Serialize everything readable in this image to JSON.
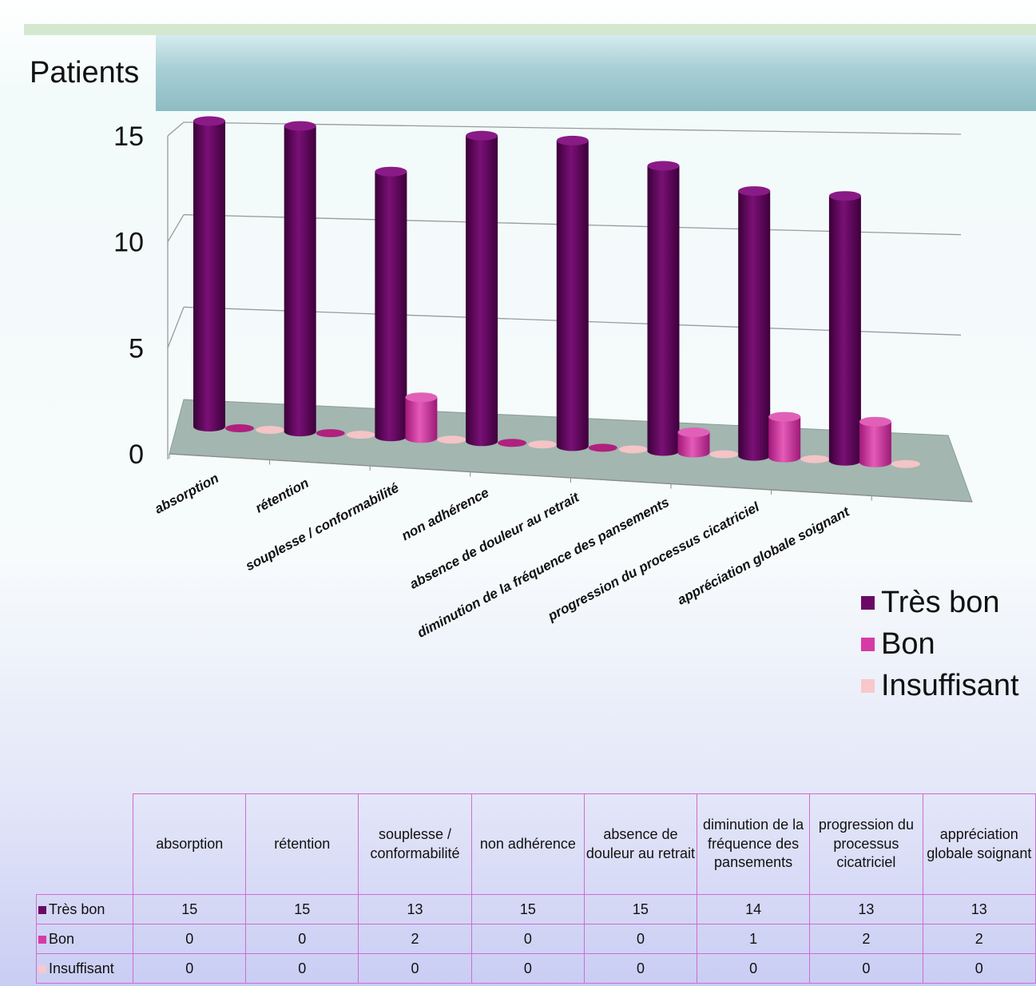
{
  "chart_data": {
    "type": "bar",
    "ylabel": "Patients",
    "ylim": [
      0,
      15
    ],
    "yticks": [
      "0",
      "5",
      "10",
      "15"
    ],
    "categories": [
      "absorption",
      "rétention",
      "souplesse / conformabilité",
      "non adhérence",
      "absence de douleur au retrait",
      "diminution de la fréquence des pansements",
      "progression du processus cicatriciel",
      "appréciation globale soignant"
    ],
    "series": [
      {
        "name": "Très bon",
        "color": "#6a0a66",
        "values": [
          15,
          15,
          13,
          15,
          15,
          14,
          13,
          13
        ]
      },
      {
        "name": "Bon",
        "color": "#d63aa6",
        "values": [
          0,
          0,
          2,
          0,
          0,
          1,
          2,
          2
        ]
      },
      {
        "name": "Insuffisant",
        "color": "#f8c8cc",
        "values": [
          0,
          0,
          0,
          0,
          0,
          0,
          0,
          0
        ]
      }
    ],
    "legend": "right",
    "grid": true
  }
}
